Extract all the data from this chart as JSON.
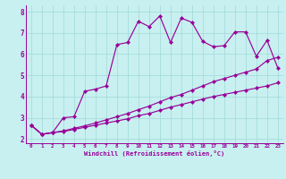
{
  "xlabel": "Windchill (Refroidissement éolien,°C)",
  "background_color": "#c8f0f0",
  "line_color": "#990099",
  "xlim": [
    -0.5,
    23.5
  ],
  "ylim": [
    1.8,
    8.3
  ],
  "xticks": [
    0,
    1,
    2,
    3,
    4,
    5,
    6,
    7,
    8,
    9,
    10,
    11,
    12,
    13,
    14,
    15,
    16,
    17,
    18,
    19,
    20,
    21,
    22,
    23
  ],
  "yticks": [
    2,
    3,
    4,
    5,
    6,
    7,
    8
  ],
  "grid_color": "#a0d8d8",
  "series1_x": [
    0,
    1,
    2,
    3,
    4,
    5,
    6,
    7,
    8,
    9,
    10,
    11,
    12,
    13,
    14,
    15,
    16,
    17,
    18,
    19,
    20,
    21,
    22,
    23
  ],
  "series1_y": [
    2.65,
    2.22,
    2.3,
    2.35,
    2.45,
    2.55,
    2.65,
    2.75,
    2.85,
    2.95,
    3.1,
    3.2,
    3.35,
    3.5,
    3.62,
    3.75,
    3.88,
    4.0,
    4.1,
    4.2,
    4.3,
    4.4,
    4.5,
    4.65
  ],
  "series2_x": [
    0,
    1,
    2,
    3,
    4,
    5,
    6,
    7,
    8,
    9,
    10,
    11,
    12,
    13,
    14,
    15,
    16,
    17,
    18,
    19,
    20,
    21,
    22,
    23
  ],
  "series2_y": [
    2.65,
    2.22,
    2.3,
    2.38,
    2.5,
    2.62,
    2.75,
    2.9,
    3.05,
    3.2,
    3.38,
    3.55,
    3.75,
    3.95,
    4.1,
    4.3,
    4.5,
    4.7,
    4.85,
    5.0,
    5.15,
    5.3,
    5.7,
    5.85
  ],
  "series3_x": [
    0,
    1,
    2,
    3,
    4,
    5,
    6,
    7,
    8,
    9,
    10,
    11,
    12,
    13,
    14,
    15,
    16,
    17,
    18,
    19,
    20,
    21,
    22,
    23
  ],
  "series3_y": [
    2.65,
    2.22,
    2.3,
    3.0,
    3.05,
    4.25,
    4.35,
    4.5,
    6.45,
    6.55,
    7.55,
    7.3,
    7.8,
    6.55,
    7.7,
    7.5,
    6.6,
    6.35,
    6.4,
    7.05,
    7.05,
    5.9,
    6.65,
    5.35
  ]
}
